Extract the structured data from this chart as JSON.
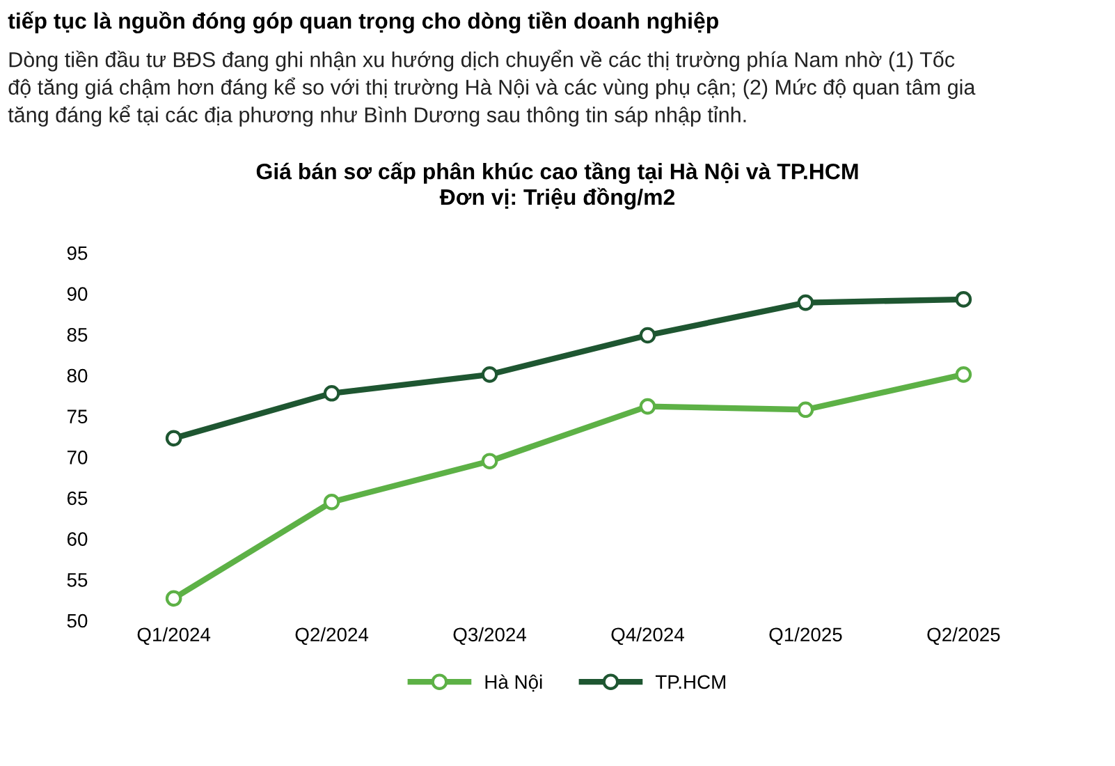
{
  "chart_data": {
    "type": "line",
    "title": "Giá bán sơ cấp phân khúc cao tầng tại Hà Nội và TP.HCM",
    "subtitle": "Đơn vị: Triệu đồng/m2",
    "annotations": [
      "tiếp tục là nguồn đóng góp quan trọng cho dòng tiền doanh nghiệp",
      "Dòng tiền đầu tư BĐS đang ghi nhận xu hướng dịch chuyển về các thị trường phía Nam nhờ (1) Tốc\nđộ tăng giá chậm hơn đáng kể so với thị trường Hà Nội và các vùng phụ cận; (2) Mức độ quan tâm gia\ntăng đáng kể tại các địa phương như Bình Dương sau thông tin sáp nhập tỉnh."
    ],
    "categories": [
      "Q1/2024",
      "Q2/2024",
      "Q3/2024",
      "Q4/2024",
      "Q1/2025",
      "Q2/2025"
    ],
    "series": [
      {
        "name": "Hà Nội",
        "color": "#5db146",
        "values": [
          52.7,
          64.5,
          69.5,
          76.2,
          75.8,
          80.1
        ]
      },
      {
        "name": "TP.HCM",
        "color": "#1e5631",
        "values": [
          72.3,
          77.8,
          80.1,
          84.9,
          88.9,
          89.3
        ]
      }
    ],
    "ylim": [
      50,
      95
    ],
    "yticks": [
      50,
      55,
      60,
      65,
      70,
      75,
      80,
      85,
      90,
      95
    ],
    "grid": false,
    "legend": "bottom",
    "marker": "circle",
    "line_style": "solid"
  }
}
